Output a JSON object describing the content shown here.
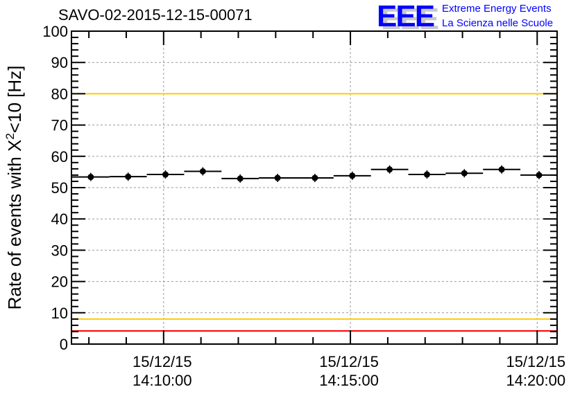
{
  "chart_data": {
    "type": "scatter",
    "title": "SAVO-02-2015-12-15-00071",
    "ylabel": "Rate of events with X²<10 [Hz]",
    "ylabel_parts": {
      "pre": "Rate of events with X",
      "sup": "2",
      "post": "<10 [Hz]"
    },
    "xlabel": "",
    "x_unit": "seconds relative to 15/12/15 14:10:00",
    "xlim": [
      -148,
      632
    ],
    "ylim": [
      0,
      100
    ],
    "grid": true,
    "x_ticks": [
      {
        "value": 0,
        "date": "15/12/15",
        "time": "14:10:00"
      },
      {
        "value": 300,
        "date": "15/12/15",
        "time": "14:15:00"
      },
      {
        "value": 600,
        "date": "15/12/15",
        "time": "14:20:00"
      }
    ],
    "y_ticks": [
      "0",
      "10",
      "20",
      "30",
      "40",
      "50",
      "60",
      "70",
      "80",
      "90",
      "100"
    ],
    "bin_width": 60,
    "x": [
      -117,
      -57,
      3,
      63,
      123,
      183,
      243,
      303,
      363,
      423,
      483,
      543,
      603
    ],
    "values": [
      53.4,
      53.5,
      54.2,
      55.2,
      52.9,
      53.1,
      53.1,
      53.8,
      55.8,
      54.2,
      54.6,
      55.8,
      54.0
    ],
    "reference_lines": [
      {
        "value": 100,
        "color": "#ff0000"
      },
      {
        "value": 80,
        "color": "#ffcc00"
      },
      {
        "value": 8,
        "color": "#ffcc00"
      },
      {
        "value": 4.2,
        "color": "#ff0000"
      }
    ]
  },
  "logo": {
    "mark": "EEE",
    "line1": "Extreme Energy Events",
    "line2": "La Scienza nelle Scuole",
    "color": "#0000ff"
  }
}
